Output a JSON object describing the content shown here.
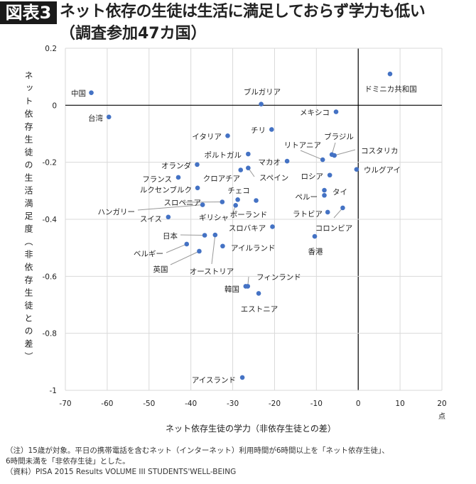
{
  "header": {
    "badge": "図表3",
    "title": "ネット依存の生徒は生活に満足しておらず学力も低い",
    "subtitle": "（調査参加47カ国）"
  },
  "chart_data": {
    "type": "scatter",
    "xlabel": "ネット依存生徒の学力（非依存生徒との差）",
    "ylabel": "ネット依存生徒の生活満足度（非依存生徒との差）",
    "x_unit": "点",
    "xlim": [
      -70,
      20
    ],
    "ylim": [
      -1,
      0.2
    ],
    "x_ticks": [
      -70,
      -60,
      -50,
      -40,
      -30,
      -20,
      -10,
      0,
      10,
      20
    ],
    "y_ticks": [
      0.2,
      0,
      -0.2,
      -0.4,
      -0.6,
      -0.8,
      -1
    ],
    "y_tick_labels": [
      "0.2",
      "0",
      "-0.2",
      "-0.4",
      "-0.6",
      "-0.8",
      "-1"
    ],
    "grid": true,
    "point_color": "#4472c4",
    "points": [
      {
        "label": "中国",
        "x": -63.8,
        "y": 0.044
      },
      {
        "label": "台湾",
        "x": -59.6,
        "y": -0.041
      },
      {
        "label": "ブルガリア",
        "x": -23.2,
        "y": 0.004
      },
      {
        "label": "ドミニカ共和国",
        "x": 7.6,
        "y": 0.11
      },
      {
        "label": "メキシコ",
        "x": -5.3,
        "y": -0.023
      },
      {
        "label": "イタリア",
        "x": -31.2,
        "y": -0.107
      },
      {
        "label": "チリ",
        "x": -20.7,
        "y": -0.085
      },
      {
        "label": "ポルトガル",
        "x": -26.3,
        "y": -0.171
      },
      {
        "label": "リトアニア",
        "x": -8.5,
        "y": -0.191
      },
      {
        "label": "ブラジル",
        "x": -6.3,
        "y": -0.173
      },
      {
        "label": "コスタリカ",
        "x": -5.7,
        "y": -0.176
      },
      {
        "label": "マカオ",
        "x": -17.0,
        "y": -0.196
      },
      {
        "label": "ウルグアイ",
        "x": -0.4,
        "y": -0.225
      },
      {
        "label": "オランダ",
        "x": -38.5,
        "y": -0.208
      },
      {
        "label": "クロアチア",
        "x": -28.1,
        "y": -0.227
      },
      {
        "label": "スペイン",
        "x": -26.3,
        "y": -0.22
      },
      {
        "label": "ロシア",
        "x": -6.8,
        "y": -0.245
      },
      {
        "label": "フランス",
        "x": -43.0,
        "y": -0.253
      },
      {
        "label": "ルクセンブルク",
        "x": -38.4,
        "y": -0.29
      },
      {
        "label": "チェコ",
        "x": -28.8,
        "y": -0.331
      },
      {
        "label": "タイ",
        "x": -8.1,
        "y": -0.298
      },
      {
        "label": "ペルー",
        "x": -8.1,
        "y": -0.316
      },
      {
        "label": "スロベニア",
        "x": -32.5,
        "y": -0.339
      },
      {
        "label": "ハンガリー",
        "x": -37.2,
        "y": -0.349
      },
      {
        "label": "ギリシャ",
        "x": -29.3,
        "y": -0.351
      },
      {
        "label": "ポーランド",
        "x": -24.4,
        "y": -0.334
      },
      {
        "label": "ラトビア",
        "x": -7.3,
        "y": -0.375
      },
      {
        "label": "コロンビア",
        "x": -3.7,
        "y": -0.36
      },
      {
        "label": "スイス",
        "x": -45.4,
        "y": -0.392
      },
      {
        "label": "スロバキア",
        "x": -20.5,
        "y": -0.426
      },
      {
        "label": "日本",
        "x": -36.7,
        "y": -0.456
      },
      {
        "label": "アイルランド",
        "x": -32.4,
        "y": -0.494
      },
      {
        "label": "香港",
        "x": -10.4,
        "y": -0.46
      },
      {
        "label": "ベルギー",
        "x": -41.0,
        "y": -0.487
      },
      {
        "label": "英国",
        "x": -38.0,
        "y": -0.512
      },
      {
        "label": "オーストリア",
        "x": -34.2,
        "y": -0.455
      },
      {
        "label": "フィンランド",
        "x": -26.4,
        "y": -0.635
      },
      {
        "label": "韓国",
        "x": -26.9,
        "y": -0.635
      },
      {
        "label": "エストニア",
        "x": -23.8,
        "y": -0.66
      },
      {
        "label": "アイスランド",
        "x": -27.7,
        "y": -0.955
      }
    ]
  },
  "notes": {
    "line1": "（注）15歳が対象。平日の携帯電話を含むネット（インターネット）利用時間が6時間以上を「ネット依存生徒」、",
    "line2": "6時間未満を「非依存生徒」とした。",
    "line3": "（資料）PISA 2015 Results VOLUME III STUDENTS'WELL-BEING"
  }
}
